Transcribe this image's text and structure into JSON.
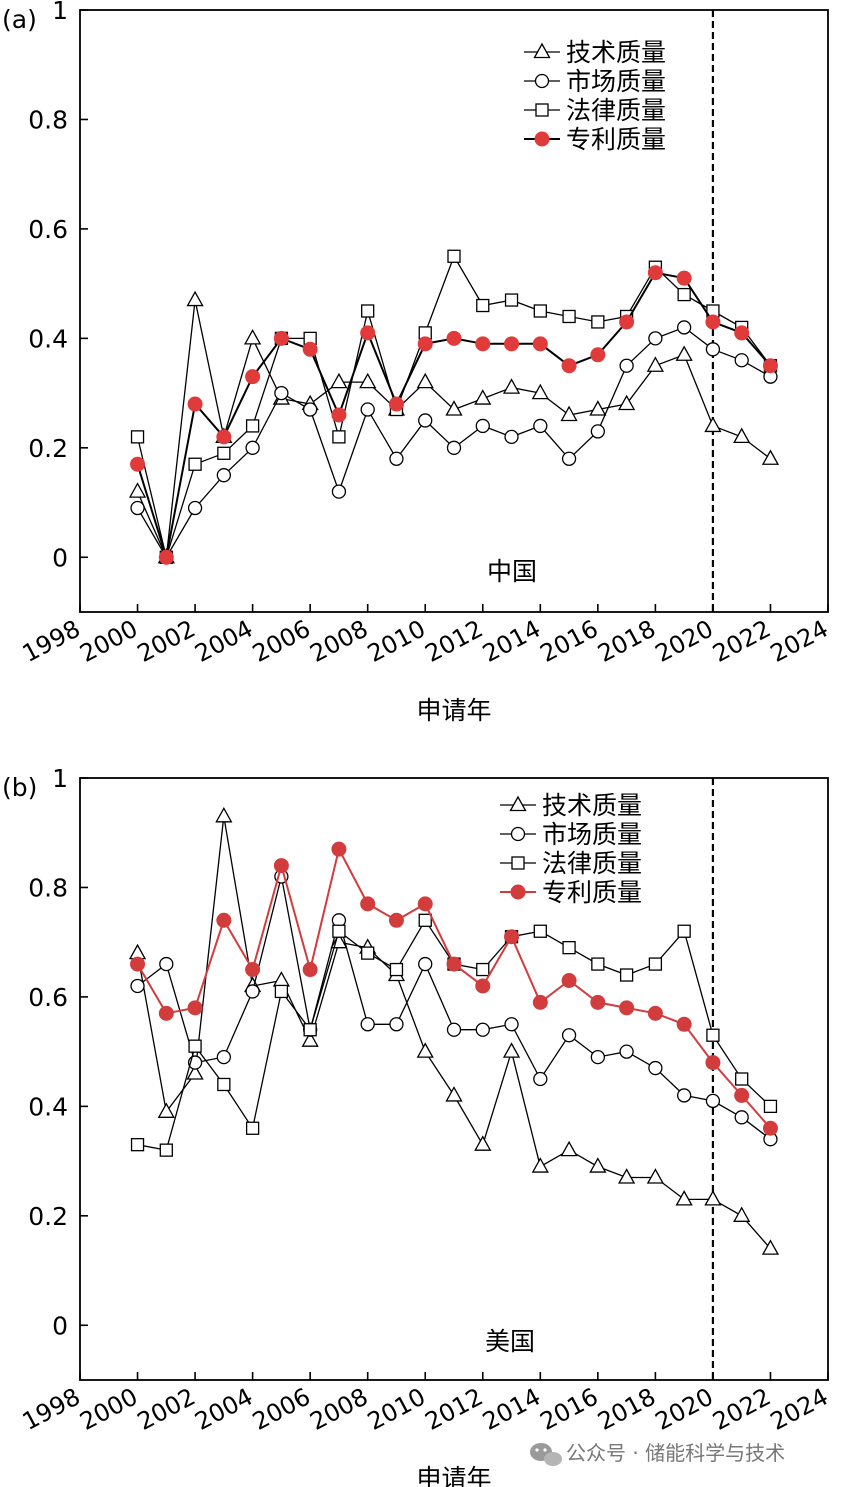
{
  "colors": {
    "black": "#000000",
    "red": "#e03a3a",
    "red_line_b": "#d23c3c",
    "marker_fill": "#ffffff"
  },
  "watermark": "公众号 · 储能科学与技术",
  "chart_data": [
    {
      "type": "line",
      "panel_label": "(a)",
      "annotation": "中国",
      "xlabel": "申请年",
      "ylabel": "",
      "xlim": [
        1998,
        2024
      ],
      "ylim": [
        -0.1,
        1.0
      ],
      "xticks": [
        "1998",
        "2000",
        "2002",
        "2004",
        "2006",
        "2008",
        "2010",
        "2012",
        "2014",
        "2016",
        "2018",
        "2020",
        "2022",
        "2024"
      ],
      "yticks": [
        "0",
        "0.2",
        "0.4",
        "0.6",
        "0.8",
        "1"
      ],
      "vline_x": 2020,
      "legend_position": "top-right",
      "x": [
        2000,
        2001,
        2002,
        2003,
        2004,
        2005,
        2006,
        2007,
        2008,
        2009,
        2010,
        2011,
        2012,
        2013,
        2014,
        2015,
        2016,
        2017,
        2018,
        2019,
        2020,
        2021,
        2022
      ],
      "series": [
        {
          "name": "技术质量",
          "marker": "triangle",
          "color": "#000000",
          "values": [
            0.12,
            0.0,
            0.47,
            0.22,
            0.4,
            0.29,
            0.28,
            0.32,
            0.32,
            0.27,
            0.32,
            0.27,
            0.29,
            0.31,
            0.3,
            0.26,
            0.27,
            0.28,
            0.35,
            0.37,
            0.24,
            0.22,
            0.18
          ]
        },
        {
          "name": "市场质量",
          "marker": "circle",
          "color": "#000000",
          "values": [
            0.09,
            0.0,
            0.09,
            0.15,
            0.2,
            0.3,
            0.27,
            0.12,
            0.27,
            0.18,
            0.25,
            0.2,
            0.24,
            0.22,
            0.24,
            0.18,
            0.23,
            0.35,
            0.4,
            0.42,
            0.38,
            0.36,
            0.33
          ]
        },
        {
          "name": "法律质量",
          "marker": "square",
          "color": "#000000",
          "values": [
            0.22,
            0.0,
            0.17,
            0.19,
            0.24,
            0.4,
            0.4,
            0.22,
            0.45,
            0.27,
            0.41,
            0.55,
            0.46,
            0.47,
            0.45,
            0.44,
            0.43,
            0.44,
            0.53,
            0.48,
            0.45,
            0.42,
            0.35
          ]
        },
        {
          "name": "专利质量",
          "marker": "filled-circle",
          "color": "#e03a3a",
          "values": [
            0.17,
            0.0,
            0.28,
            0.22,
            0.33,
            0.4,
            0.38,
            0.26,
            0.41,
            0.28,
            0.39,
            0.4,
            0.39,
            0.39,
            0.39,
            0.35,
            0.37,
            0.43,
            0.52,
            0.51,
            0.43,
            0.41,
            0.35
          ]
        }
      ]
    },
    {
      "type": "line",
      "panel_label": "(b)",
      "annotation": "美国",
      "xlabel": "申请年",
      "ylabel": "",
      "xlim": [
        1998,
        2024
      ],
      "ylim": [
        -0.1,
        1.0
      ],
      "xticks": [
        "1998",
        "2000",
        "2002",
        "2004",
        "2006",
        "2008",
        "2010",
        "2012",
        "2014",
        "2016",
        "2018",
        "2020",
        "2022",
        "2024"
      ],
      "yticks": [
        "0",
        "0.2",
        "0.4",
        "0.6",
        "0.8",
        "1"
      ],
      "vline_x": 2020,
      "legend_position": "top-right",
      "x": [
        2000,
        2001,
        2002,
        2003,
        2004,
        2005,
        2006,
        2007,
        2008,
        2009,
        2010,
        2011,
        2012,
        2013,
        2014,
        2015,
        2016,
        2017,
        2018,
        2019,
        2020,
        2021,
        2022
      ],
      "series": [
        {
          "name": "技术质量",
          "marker": "triangle",
          "color": "#000000",
          "values": [
            0.68,
            0.39,
            0.46,
            0.93,
            0.62,
            0.63,
            0.52,
            0.7,
            0.69,
            0.64,
            0.5,
            0.42,
            0.33,
            0.5,
            0.29,
            0.32,
            0.29,
            0.27,
            0.27,
            0.23,
            0.23,
            0.2,
            0.14
          ]
        },
        {
          "name": "市场质量",
          "marker": "circle",
          "color": "#000000",
          "values": [
            0.62,
            0.66,
            0.48,
            0.49,
            0.61,
            0.82,
            0.54,
            0.74,
            0.55,
            0.55,
            0.66,
            0.54,
            0.54,
            0.55,
            0.45,
            0.53,
            0.49,
            0.5,
            0.47,
            0.42,
            0.41,
            0.38,
            0.34
          ]
        },
        {
          "name": "法律质量",
          "marker": "square",
          "color": "#000000",
          "values": [
            0.33,
            0.32,
            0.51,
            0.44,
            0.36,
            0.61,
            0.54,
            0.72,
            0.68,
            0.65,
            0.74,
            0.66,
            0.65,
            0.71,
            0.72,
            0.69,
            0.66,
            0.64,
            0.66,
            0.72,
            0.53,
            0.45,
            0.4
          ]
        },
        {
          "name": "专利质量",
          "marker": "filled-circle",
          "color": "#d23c3c",
          "values": [
            0.66,
            0.57,
            0.58,
            0.74,
            0.65,
            0.84,
            0.65,
            0.87,
            0.77,
            0.74,
            0.77,
            0.66,
            0.62,
            0.71,
            0.59,
            0.63,
            0.59,
            0.58,
            0.57,
            0.55,
            0.48,
            0.42,
            0.36
          ]
        }
      ]
    }
  ]
}
